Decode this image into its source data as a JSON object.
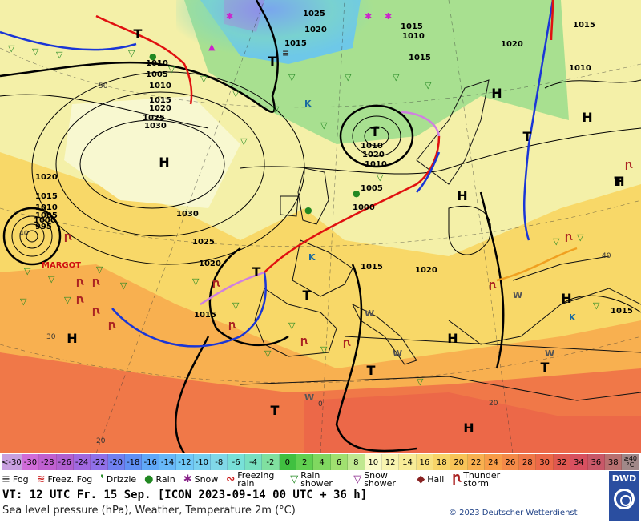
{
  "map": {
    "pressure_centers": [
      {
        "letter": "H"
      },
      {
        "letter": "H"
      },
      {
        "letter": "H"
      },
      {
        "letter": "H"
      },
      {
        "letter": "H"
      },
      {
        "letter": "H"
      },
      {
        "letter": "H"
      },
      {
        "letter": "H"
      },
      {
        "letter": "H"
      },
      {
        "letter": "T"
      },
      {
        "letter": "T"
      },
      {
        "letter": "T"
      },
      {
        "letter": "T"
      },
      {
        "letter": "T"
      },
      {
        "letter": "T"
      },
      {
        "letter": "T"
      },
      {
        "letter": "T"
      },
      {
        "letter": "T"
      },
      {
        "letter": "T"
      }
    ],
    "isobar_labels": [
      "1025",
      "1020",
      "1015",
      "1010",
      "1005",
      "1010",
      "1015",
      "1020",
      "1025",
      "1030",
      "1030",
      "1025",
      "1020",
      "1015",
      "1010",
      "1005",
      "1000",
      "995",
      "1015",
      "1020",
      "1015",
      "1010",
      "1015",
      "1010",
      "1020",
      "1010",
      "1005",
      "1000",
      "1015",
      "1020",
      "1020",
      "1015",
      "1010",
      "1015"
    ],
    "temperature_labels": [
      "50",
      "40",
      "30",
      "20",
      "40",
      "20",
      "0"
    ],
    "cyclone_name": "MARGOT",
    "colors": {
      "cold_front": "#1a36d6",
      "warm_front": "#e01010",
      "occlusion": "#d080e0",
      "weather": "#228822"
    }
  },
  "scale": {
    "cells": [
      {
        "label": "<-30",
        "color": "#c8a0e0"
      },
      {
        "label": "-30",
        "color": "#d06cd8"
      },
      {
        "label": "-28",
        "color": "#c060d0"
      },
      {
        "label": "-26",
        "color": "#b060d0"
      },
      {
        "label": "-24",
        "color": "#a068e0"
      },
      {
        "label": "-22",
        "color": "#9070e8"
      },
      {
        "label": "-20",
        "color": "#7080f0"
      },
      {
        "label": "-18",
        "color": "#6090f4"
      },
      {
        "label": "-16",
        "color": "#60a8f8"
      },
      {
        "label": "-14",
        "color": "#68b8f8"
      },
      {
        "label": "-12",
        "color": "#70c8f8"
      },
      {
        "label": "-10",
        "color": "#78d0f0"
      },
      {
        "label": "-8",
        "color": "#80d8e8"
      },
      {
        "label": "-6",
        "color": "#78e0d8"
      },
      {
        "label": "-4",
        "color": "#78e0c0"
      },
      {
        "label": "-2",
        "color": "#80e0a0"
      },
      {
        "label": "0",
        "color": "#40c040"
      },
      {
        "label": "2",
        "color": "#60d050"
      },
      {
        "label": "4",
        "color": "#80d860"
      },
      {
        "label": "6",
        "color": "#a0e070"
      },
      {
        "label": "8",
        "color": "#c0e890"
      },
      {
        "label": "10",
        "color": "#fafac8"
      },
      {
        "label": "12",
        "color": "#f8f4b0"
      },
      {
        "label": "14",
        "color": "#f8ec98"
      },
      {
        "label": "16",
        "color": "#f8e080"
      },
      {
        "label": "18",
        "color": "#f8d468"
      },
      {
        "label": "20",
        "color": "#f8c458"
      },
      {
        "label": "22",
        "color": "#f8b050"
      },
      {
        "label": "24",
        "color": "#f89c48"
      },
      {
        "label": "26",
        "color": "#f48a48"
      },
      {
        "label": "28",
        "color": "#f07848"
      },
      {
        "label": "30",
        "color": "#ec6848"
      },
      {
        "label": "32",
        "color": "#e05850"
      },
      {
        "label": "34",
        "color": "#d85060"
      },
      {
        "label": "36",
        "color": "#c85868"
      },
      {
        "label": "38",
        "color": "#b87070"
      },
      {
        "label": "≥40 °C",
        "color": "#a08888"
      }
    ]
  },
  "legend": {
    "items": [
      {
        "label": "Fog",
        "icon": "fog-icon",
        "sym": "≡",
        "color": "#333333"
      },
      {
        "label": "Freez. Fog",
        "icon": "freezing-fog-icon",
        "sym": "≋",
        "color": "#cc2222"
      },
      {
        "label": "Drizzle",
        "icon": "drizzle-icon",
        "sym": "❜",
        "color": "#228822"
      },
      {
        "label": "Rain",
        "icon": "rain-icon",
        "sym": "●",
        "color": "#228822"
      },
      {
        "label": "Snow",
        "icon": "snow-icon",
        "sym": "✱",
        "color": "#882288"
      },
      {
        "label": "Freezing rain",
        "icon": "freezing-rain-icon",
        "sym": "∾",
        "color": "#cc2222"
      },
      {
        "label": "Rain shower",
        "icon": "rain-shower-icon",
        "sym": "▽",
        "color": "#228822"
      },
      {
        "label": "Snow shower",
        "icon": "snow-shower-icon",
        "sym": "▽",
        "color": "#882288"
      },
      {
        "label": "Hail",
        "icon": "hail-icon",
        "sym": "◆",
        "color": "#882222"
      },
      {
        "label": "Thunder storm",
        "icon": "thunderstorm-icon",
        "sym": "Ꞃ",
        "color": "#aa2222"
      }
    ]
  },
  "footer": {
    "vt": "VT: 12 UTC Fr.  15 Sep. [ICON 2023-09-14  00 UTC + 36 h]",
    "description": "Sea level pressure (hPa), Weather, Temperature 2m (°C)",
    "copyright": "© 2023 Deutscher Wetterdienst",
    "logo": "DWD"
  }
}
